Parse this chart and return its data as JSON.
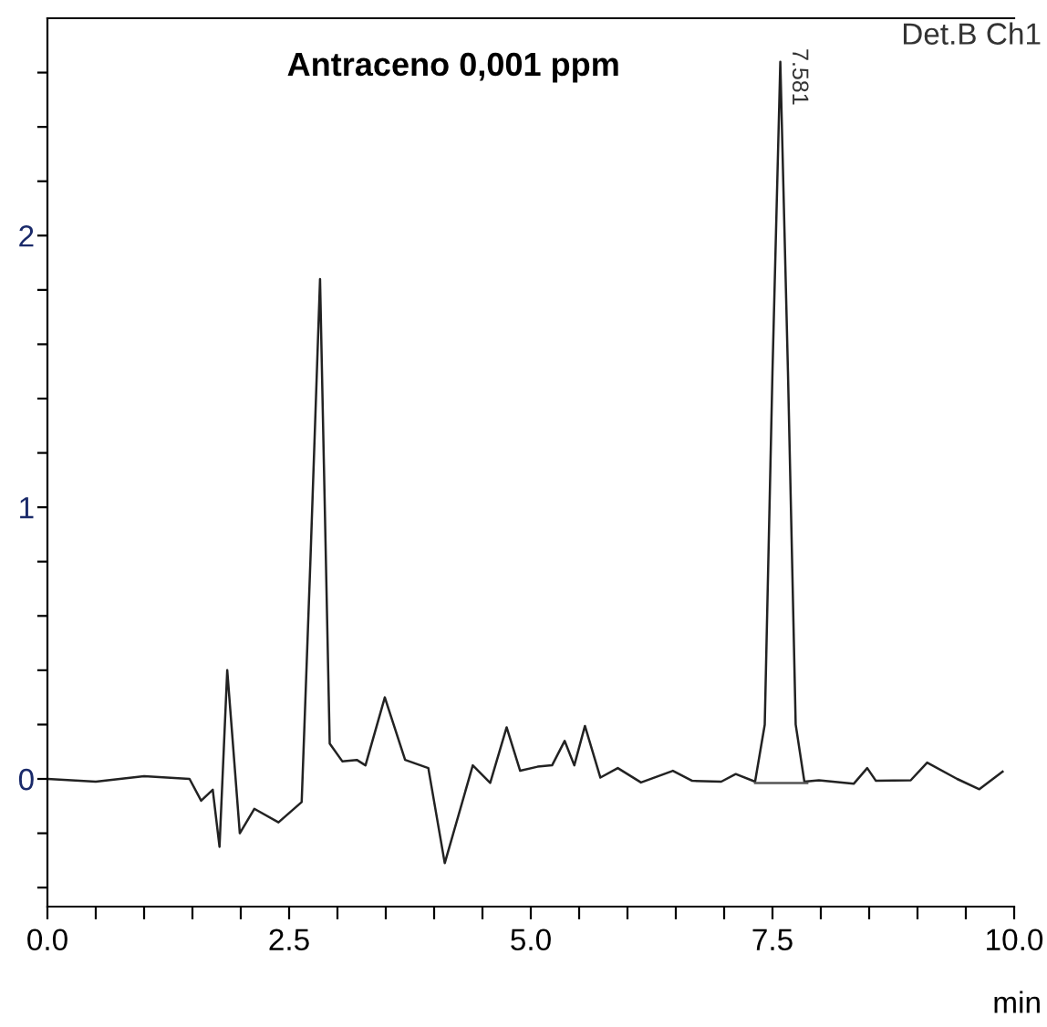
{
  "chart_data": {
    "type": "line",
    "title": "Antraceno 0,001 ppm",
    "xlabel": "min",
    "annotations": [
      "Det.B Ch1",
      {
        "text": "7.581",
        "x": 7.581,
        "y": 2.64
      }
    ],
    "series": [
      {
        "color": "#222222",
        "x": [
          0,
          0.5,
          1.0,
          1.47,
          1.59,
          1.71,
          1.78,
          1.86,
          1.99,
          2.14,
          2.39,
          2.63,
          2.72,
          2.82,
          2.92,
          3.05,
          3.2,
          3.29,
          3.49,
          3.7,
          3.94,
          4.11,
          4.4,
          4.58,
          4.75,
          4.89,
          5.07,
          5.22,
          5.35,
          5.45,
          5.56,
          5.72,
          5.9,
          6.14,
          6.47,
          6.67,
          6.97,
          7.12,
          7.32,
          7.42,
          7.5,
          7.581,
          7.66,
          7.74,
          7.83,
          7.98,
          8.34,
          8.48,
          8.57,
          8.93,
          9.1,
          9.41,
          9.64,
          9.88
        ],
        "values": [
          0,
          -0.01,
          0.01,
          0,
          -0.08,
          -0.04,
          -0.25,
          0.4,
          -0.2,
          -0.11,
          -0.16,
          -0.085,
          0.8,
          1.84,
          0.13,
          0.065,
          0.07,
          0.05,
          0.3,
          0.07,
          0.04,
          -0.31,
          0.05,
          -0.015,
          0.19,
          0.03,
          0.045,
          0.05,
          0.14,
          0.05,
          0.195,
          0.005,
          0.04,
          -0.013,
          0.03,
          -0.007,
          -0.01,
          0.018,
          -0.01,
          0.2,
          1.5,
          2.64,
          1.5,
          0.2,
          -0.01,
          -0.005,
          -0.018,
          0.04,
          -0.007,
          -0.005,
          0.06,
          0,
          -0.038,
          0.027
        ]
      },
      {
        "color": "#555555",
        "x": [
          7.32,
          7.86
        ],
        "values": [
          -0.015,
          -0.015
        ]
      }
    ],
    "xlim": [
      0,
      10.0
    ],
    "ylim": [
      -0.47,
      2.8
    ],
    "xticks": [
      {
        "value": 0,
        "label": "0.0"
      },
      {
        "value": 0.5,
        "label": null
      },
      {
        "value": 1,
        "label": null
      },
      {
        "value": 1.5,
        "label": null
      },
      {
        "value": 2,
        "label": null
      },
      {
        "value": 2.5,
        "label": "2.5"
      },
      {
        "value": 3,
        "label": null
      },
      {
        "value": 3.5,
        "label": null
      },
      {
        "value": 4,
        "label": null
      },
      {
        "value": 4.5,
        "label": null
      },
      {
        "value": 5,
        "label": "5.0"
      },
      {
        "value": 5.5,
        "label": null
      },
      {
        "value": 6,
        "label": null
      },
      {
        "value": 6.5,
        "label": null
      },
      {
        "value": 7,
        "label": null
      },
      {
        "value": 7.5,
        "label": "7.5"
      },
      {
        "value": 8,
        "label": null
      },
      {
        "value": 8.5,
        "label": null
      },
      {
        "value": 9,
        "label": null
      },
      {
        "value": 9.5,
        "label": null
      },
      {
        "value": 10,
        "label": "10.0"
      }
    ],
    "yticks": [
      {
        "value": -0.4,
        "label": null
      },
      {
        "value": -0.2,
        "label": null
      },
      0,
      {
        "value": 0.2,
        "label": null
      },
      {
        "value": 0.4,
        "label": null
      },
      {
        "value": 0.6,
        "label": null
      },
      {
        "value": 0.8,
        "label": null
      },
      1,
      {
        "value": 1.2,
        "label": null
      },
      {
        "value": 1.4,
        "label": null
      },
      {
        "value": 1.6,
        "label": null
      },
      {
        "value": 1.8,
        "label": null
      },
      2,
      {
        "value": 2.2,
        "label": null
      },
      {
        "value": 2.4,
        "label": null
      },
      {
        "value": 2.6,
        "label": null
      }
    ],
    "grid": false,
    "legend": false,
    "marker": "none",
    "line_style": "solid"
  }
}
